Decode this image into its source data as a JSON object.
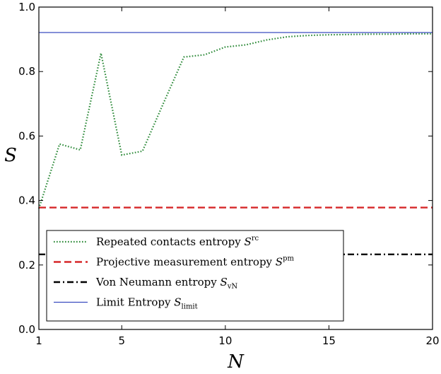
{
  "chart_data": {
    "type": "line",
    "xlabel": "N",
    "ylabel": "S",
    "xlim": [
      1,
      20
    ],
    "ylim": [
      0,
      1.0
    ],
    "xticks": [
      1,
      5,
      10,
      15,
      20
    ],
    "yticks": [
      0.0,
      0.2,
      0.4,
      0.6,
      0.8,
      1.0
    ],
    "xtick_labels": [
      "1",
      "5",
      "10",
      "15",
      "20"
    ],
    "ytick_labels": [
      "0.0",
      "0.2",
      "0.4",
      "0.6",
      "0.8",
      "1.0"
    ],
    "grid": false,
    "legend_position": "lower-left",
    "series": [
      {
        "name": "Repeated contacts entropy",
        "sup": "rc",
        "style": "dotted",
        "color": "#2e8b3a",
        "x": [
          1,
          2,
          3,
          4,
          5,
          6,
          7,
          8,
          9,
          10,
          11,
          12,
          13,
          14,
          15,
          16,
          17,
          18,
          19,
          20
        ],
        "y": [
          0.375,
          0.575,
          0.557,
          0.857,
          0.541,
          0.553,
          0.7,
          0.845,
          0.852,
          0.876,
          0.883,
          0.898,
          0.908,
          0.912,
          0.914,
          0.915,
          0.916,
          0.916,
          0.917,
          0.917
        ]
      },
      {
        "name": "Projective measurement entropy",
        "sup": "pm",
        "style": "dashed",
        "color": "#d62728",
        "x": [
          1,
          20
        ],
        "y": [
          0.378,
          0.378
        ]
      },
      {
        "name": "Von Neumann entropy",
        "sub": "vN",
        "style": "dashdot",
        "color": "#000000",
        "x": [
          1,
          20
        ],
        "y": [
          0.233,
          0.233
        ]
      },
      {
        "name": "Limit Entropy",
        "sub": "limit",
        "style": "solid",
        "color": "#3b4cc0",
        "x": [
          1,
          20
        ],
        "y": [
          0.921,
          0.921
        ]
      }
    ]
  }
}
